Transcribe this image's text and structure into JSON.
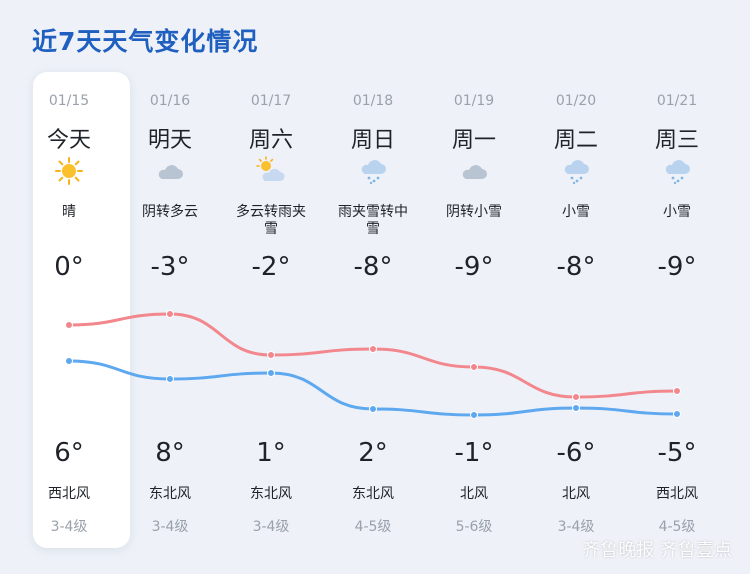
{
  "title": "近7天天气变化情况",
  "days": [
    {
      "date": "01/15",
      "day": "今天",
      "icon": "sun-icon",
      "cond": "晴",
      "high": "0°",
      "low": "6°",
      "wind": "西北风",
      "level": "3-4级",
      "high_val": 0,
      "low_val": 6
    },
    {
      "date": "01/16",
      "day": "明天",
      "icon": "cloud-icon",
      "cond": "阴转多云",
      "high": "-3°",
      "low": "8°",
      "wind": "东北风",
      "level": "3-4级",
      "high_val": -3,
      "low_val": 8
    },
    {
      "date": "01/17",
      "day": "周六",
      "icon": "sun-cloud-icon",
      "cond": "多云转雨夹雪",
      "high": "-2°",
      "low": "1°",
      "wind": "东北风",
      "level": "3-4级",
      "high_val": -2,
      "low_val": 1
    },
    {
      "date": "01/18",
      "day": "周日",
      "icon": "snow-cloud-icon",
      "cond": "雨夹雪转中雪",
      "high": "-8°",
      "low": "2°",
      "wind": "东北风",
      "level": "4-5级",
      "high_val": -8,
      "low_val": 2
    },
    {
      "date": "01/19",
      "day": "周一",
      "icon": "cloud-icon",
      "cond": "阴转小雪",
      "high": "-9°",
      "low": "-1°",
      "wind": "北风",
      "level": "5-6级",
      "high_val": -9,
      "low_val": -1
    },
    {
      "date": "01/20",
      "day": "周二",
      "icon": "snow-cloud-icon",
      "cond": "小雪",
      "high": "-8°",
      "low": "-6°",
      "wind": "北风",
      "level": "3-4级",
      "high_val": -8,
      "low_val": -6
    },
    {
      "date": "01/21",
      "day": "周三",
      "icon": "snow-cloud-icon",
      "cond": "小雪",
      "high": "-9°",
      "low": "-5°",
      "wind": "西北风",
      "level": "4-5级",
      "high_val": -9,
      "low_val": -5
    }
  ],
  "colors": {
    "high_line": "#f2878d",
    "low_line": "#5ea8f0",
    "title": "#1f5fbf"
  },
  "watermark": "齐鲁晚报 齐鲁壹点"
}
